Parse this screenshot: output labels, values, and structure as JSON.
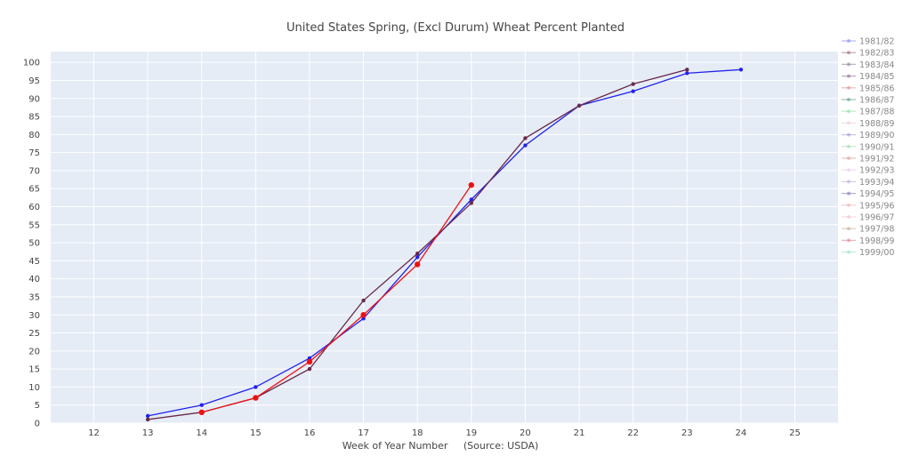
{
  "chart_data": {
    "type": "line",
    "title": "United States Spring, (Excl Durum) Wheat Percent Planted",
    "xlabel": "Week of Year Number     (Source: USDA)",
    "ylabel": "",
    "xlim": [
      11.2,
      25.8
    ],
    "ylim": [
      0,
      103
    ],
    "xticks": [
      12,
      13,
      14,
      15,
      16,
      17,
      18,
      19,
      20,
      21,
      22,
      23,
      24,
      25
    ],
    "yticks": [
      0,
      5,
      10,
      15,
      20,
      25,
      30,
      35,
      40,
      45,
      50,
      55,
      60,
      65,
      70,
      75,
      80,
      85,
      90,
      95,
      100
    ],
    "grid": true,
    "legend_position": "right",
    "series": [
      {
        "name": "1981/82",
        "color": "#8888ee",
        "visible": false
      },
      {
        "name": "1982/83",
        "color": "#9a6a7a",
        "visible": false
      },
      {
        "name": "1983/84",
        "color": "#8a7a9a",
        "visible": false
      },
      {
        "name": "1984/85",
        "color": "#8a6a8a",
        "visible": false
      },
      {
        "name": "1985/86",
        "color": "#e08a8a",
        "visible": false
      },
      {
        "name": "1986/87",
        "color": "#5a9a8a",
        "visible": false
      },
      {
        "name": "1987/88",
        "color": "#8ae0a8",
        "visible": false
      },
      {
        "name": "1988/89",
        "color": "#f0c8c8",
        "visible": false
      },
      {
        "name": "1989/90",
        "color": "#9a9ae0",
        "visible": false
      },
      {
        "name": "1990/91",
        "color": "#9ad8a8",
        "visible": false
      },
      {
        "name": "1991/92",
        "color": "#e09a9a",
        "visible": false
      },
      {
        "name": "1992/93",
        "color": "#e8c8e8",
        "visible": false
      },
      {
        "name": "1993/94",
        "color": "#b8a8d8",
        "visible": false
      },
      {
        "name": "1994/95",
        "color": "#7a7aaa",
        "visible": false
      },
      {
        "name": "1995/96",
        "color": "#e8b0a8",
        "visible": false
      },
      {
        "name": "1996/97",
        "color": "#f0c0d0",
        "visible": false
      },
      {
        "name": "1997/98",
        "color": "#c8a890",
        "visible": false
      },
      {
        "name": "1998/99",
        "color": "#e07a8a",
        "visible": false
      },
      {
        "name": "1999/00",
        "color": "#98e0c8",
        "visible": false
      },
      {
        "name": "",
        "color": "#2222ee",
        "visible": true,
        "marker_size": 2.2,
        "x": [
          13,
          14,
          15,
          16,
          17,
          18,
          19,
          20,
          21,
          22,
          23,
          24
        ],
        "y": [
          2,
          5,
          10,
          18,
          29,
          46,
          62,
          77,
          88,
          92,
          97,
          98
        ]
      },
      {
        "name": "",
        "color": "#6a2a4a",
        "visible": true,
        "marker_size": 2.2,
        "x": [
          13,
          14,
          15,
          16,
          17,
          18,
          19,
          20,
          21,
          22,
          23
        ],
        "y": [
          1,
          3,
          7,
          15,
          34,
          47,
          61,
          79,
          88,
          94,
          98
        ]
      },
      {
        "name": "",
        "color": "#ee1111",
        "visible": true,
        "marker_size": 3.2,
        "x": [
          14,
          15,
          16,
          17,
          18,
          19
        ],
        "y": [
          3,
          7,
          17,
          30,
          44,
          66
        ]
      }
    ]
  }
}
